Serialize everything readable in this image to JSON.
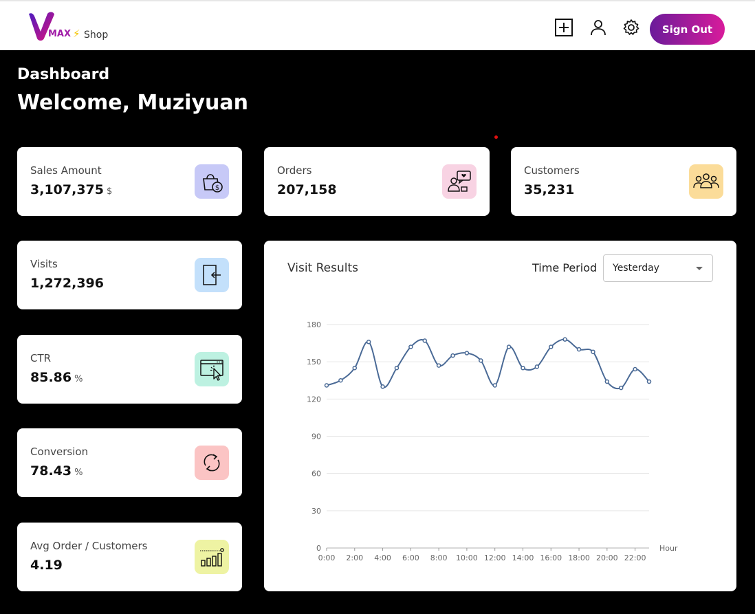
{
  "header": {
    "logo_max": "MAX",
    "logo_shop": "Shop",
    "signout_label": "Sign Out",
    "icons": [
      "plus-square-icon",
      "user-icon",
      "gear-icon"
    ]
  },
  "page": {
    "section": "Dashboard",
    "welcome": "Welcome, Muziyuan"
  },
  "stats": {
    "sales": {
      "label": "Sales Amount",
      "value": "3,107,375",
      "unit": "$",
      "icon": "shopping-bag-dollar-icon",
      "icon_bg": "#c7c9f7"
    },
    "orders": {
      "label": "Orders",
      "value": "207,158",
      "icon": "customer-chat-icon",
      "icon_bg": "#f8d3e3"
    },
    "customers": {
      "label": "Customers",
      "value": "35,231",
      "icon": "users-group-icon",
      "icon_bg": "#fbdc99"
    },
    "visits": {
      "label": "Visits",
      "value": "1,272,396",
      "icon": "login-door-icon",
      "icon_bg": "#c3e0fb"
    },
    "ctr": {
      "label": "CTR",
      "value": "85.86",
      "unit": "%",
      "icon": "browser-click-icon",
      "icon_bg": "#bdf1e1"
    },
    "conversion": {
      "label": "Conversion",
      "value": "78.43",
      "unit": "%",
      "icon": "refresh-icon",
      "icon_bg": "#fbc4c4"
    },
    "avg_order": {
      "label": "Avg Order / Customers",
      "value": "4.19",
      "icon": "bar-growth-icon",
      "icon_bg": "#eef3a3"
    }
  },
  "chart_panel": {
    "title": "Visit Results",
    "time_period_label": "Time Period",
    "time_period_value": "Yesterday"
  },
  "chart_data": {
    "type": "line",
    "xlabel": "Hour",
    "ylabel": "",
    "ylim": [
      0,
      180
    ],
    "yticks": [
      0,
      30,
      60,
      90,
      120,
      150,
      180
    ],
    "x": [
      "0:00",
      "1:00",
      "2:00",
      "3:00",
      "4:00",
      "5:00",
      "6:00",
      "7:00",
      "8:00",
      "9:00",
      "10:00",
      "11:00",
      "12:00",
      "13:00",
      "14:00",
      "15:00",
      "16:00",
      "17:00",
      "18:00",
      "19:00",
      "20:00",
      "21:00",
      "22:00",
      "23:00"
    ],
    "x_tick_labels": [
      "0:00",
      "2:00",
      "4:00",
      "6:00",
      "8:00",
      "10:00",
      "12:00",
      "14:00",
      "16:00",
      "18:00",
      "20:00",
      "22:00"
    ],
    "series": [
      {
        "values": [
          131,
          135,
          145,
          166,
          130,
          145,
          162,
          167,
          147,
          155,
          157,
          151,
          131,
          162,
          145,
          146,
          162,
          168,
          160,
          158,
          134,
          129,
          144,
          134
        ]
      }
    ],
    "line_color": "#4a6a96",
    "grid": true
  }
}
